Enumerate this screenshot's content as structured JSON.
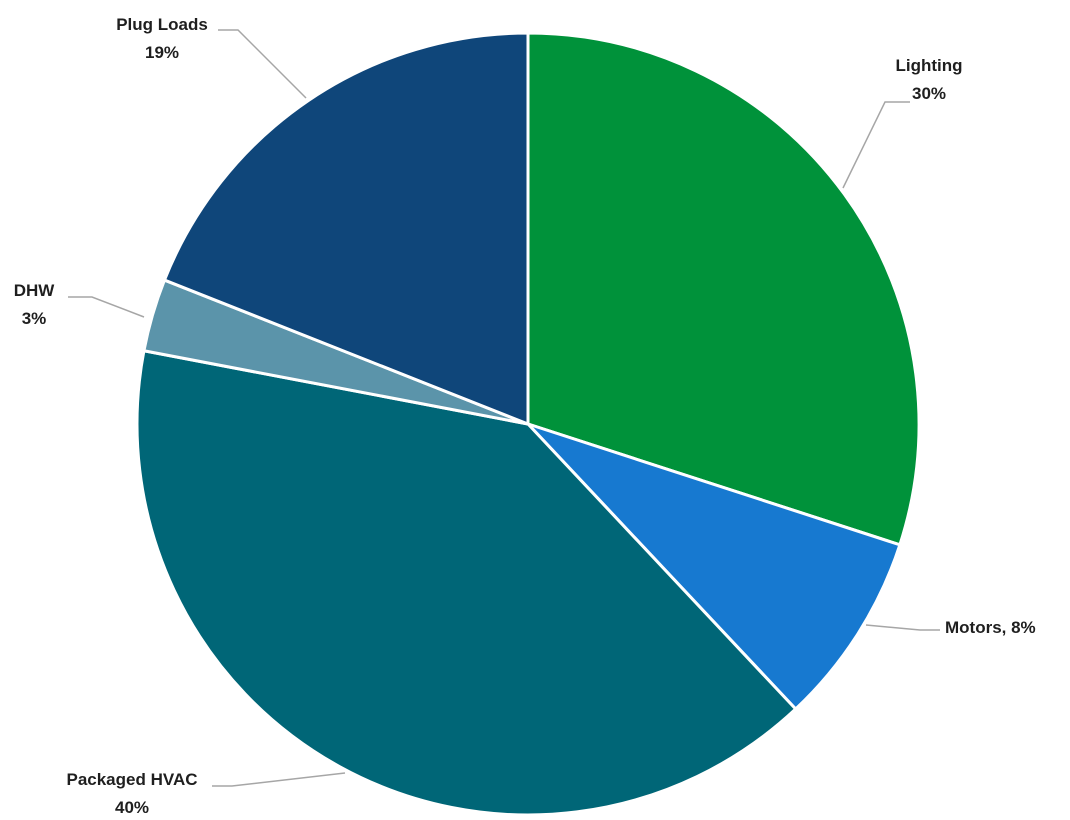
{
  "chart_data": {
    "type": "pie",
    "title": "",
    "slices": [
      {
        "name": "Lighting",
        "value": 30,
        "label": "30%",
        "color": "#00923a"
      },
      {
        "name": "Motors",
        "value": 8,
        "label": "8%",
        "color": "#1779d0"
      },
      {
        "name": "Packaged HVAC",
        "value": 40,
        "label": "40%",
        "color": "#006677"
      },
      {
        "name": "DHW",
        "value": 3,
        "label": "3%",
        "color": "#5b94aa"
      },
      {
        "name": "Plug Loads",
        "value": 19,
        "label": "19%",
        "color": "#0f467a"
      }
    ],
    "start_angle_deg": 0,
    "direction": "clockwise",
    "data_labels": "outside-with-leader-lines",
    "legend": "none"
  }
}
